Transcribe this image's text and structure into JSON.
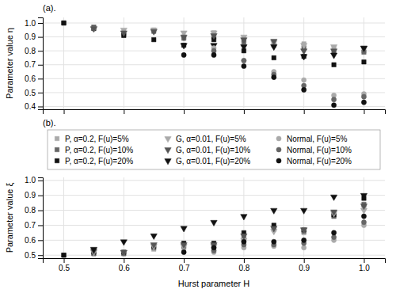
{
  "chart_data": [
    {
      "type": "scatter",
      "annotation": "(a).",
      "ylabel": "Parameter value η",
      "x": [
        0.5,
        0.55,
        0.6,
        0.65,
        0.7,
        0.75,
        0.8,
        0.85,
        0.9,
        0.95,
        1.0
      ],
      "xlim": [
        0.465,
        1.035
      ],
      "xticks": [
        0.5,
        0.6,
        0.7,
        0.8,
        0.9,
        1
      ],
      "ylim": [
        0.38,
        1.04
      ],
      "yticks": [
        0.4,
        0.5,
        0.6,
        0.7,
        0.8,
        0.9,
        {
          "value": 1,
          "label": "1.0"
        }
      ],
      "grid": true,
      "tick_labels": "y",
      "series": [
        {
          "color": "#aaaaaa",
          "marker": "square",
          "values": [
            1.0,
            0.97,
            0.93,
            0.95,
            0.9,
            0.93,
            0.88,
            0.86,
            0.85,
            0.82,
            0.8
          ]
        },
        {
          "color": "#666666",
          "marker": "square",
          "values": [
            1.0,
            0.97,
            0.92,
            0.94,
            0.89,
            0.9,
            0.86,
            0.84,
            0.82,
            0.79,
            0.79
          ]
        },
        {
          "color": "#111111",
          "marker": "square",
          "values": [
            1.0,
            0.96,
            0.91,
            0.88,
            0.84,
            0.88,
            0.8,
            0.75,
            0.76,
            0.7,
            0.72
          ]
        },
        {
          "color": "#aaaaaa",
          "marker": "triangle-down",
          "values": [
            null,
            0.96,
            0.95,
            0.95,
            0.93,
            0.93,
            0.9,
            0.86,
            0.84,
            0.83,
            0.82
          ]
        },
        {
          "color": "#555555",
          "marker": "triangle-down",
          "values": [
            null,
            0.96,
            0.93,
            0.94,
            0.9,
            0.91,
            0.88,
            0.87,
            0.8,
            0.8,
            0.82
          ]
        },
        {
          "color": "#111111",
          "marker": "triangle-down",
          "values": [
            null,
            null,
            null,
            null,
            0.84,
            0.84,
            0.83,
            0.83,
            0.76,
            0.77,
            0.82
          ]
        },
        {
          "color": "#aaaaaa",
          "marker": "circle",
          "values": [
            null,
            null,
            null,
            null,
            null,
            0.82,
            0.73,
            0.65,
            0.59,
            0.48,
            0.49
          ]
        },
        {
          "color": "#666666",
          "marker": "circle",
          "values": [
            null,
            null,
            null,
            null,
            null,
            0.8,
            0.73,
            0.63,
            0.55,
            0.45,
            0.47
          ]
        },
        {
          "color": "#111111",
          "marker": "circle",
          "values": [
            null,
            null,
            null,
            null,
            0.77,
            0.77,
            0.69,
            0.61,
            0.52,
            0.41,
            0.43
          ]
        }
      ]
    },
    {
      "type": "scatter",
      "annotation": "(b).",
      "xlabel": "Hurst parameter H",
      "ylabel": "Parameter value ξ",
      "x": [
        0.5,
        0.55,
        0.6,
        0.65,
        0.7,
        0.75,
        0.8,
        0.85,
        0.9,
        0.95,
        1.0
      ],
      "xlim": [
        0.465,
        1.035
      ],
      "xticks": [
        0.5,
        0.6,
        0.7,
        0.8,
        0.9,
        {
          "value": 1,
          "label": "1.0"
        }
      ],
      "ylim": [
        0.48,
        1.02
      ],
      "yticks": [
        0.5,
        0.6,
        0.7,
        0.8,
        0.9,
        {
          "value": 1,
          "label": "1.0"
        }
      ],
      "grid": true,
      "legend": "top",
      "series": [
        {
          "name": "P, α=0.2, F(u)=5%",
          "color": "#aaaaaa",
          "marker": "square",
          "values": [
            0.5,
            0.51,
            0.51,
            0.54,
            0.55,
            0.54,
            0.6,
            0.67,
            0.65,
            0.76,
            0.82
          ]
        },
        {
          "name": "P, α=0.2, F(u)=10%",
          "color": "#666666",
          "marker": "square",
          "values": [
            0.5,
            0.51,
            0.51,
            0.55,
            0.56,
            0.56,
            0.62,
            0.68,
            0.66,
            0.76,
            0.84
          ]
        },
        {
          "name": "P, α=0.2, F(u)=20%",
          "color": "#111111",
          "marker": "square",
          "values": [
            0.5,
            0.52,
            0.52,
            0.56,
            0.58,
            0.58,
            0.65,
            0.7,
            0.67,
            0.77,
            0.88
          ]
        },
        {
          "name": "G, α=0.01, F(u)=5%",
          "color": "#aaaaaa",
          "marker": "triangle-down",
          "values": [
            null,
            0.52,
            0.52,
            0.56,
            0.56,
            0.56,
            0.6,
            0.66,
            0.67,
            0.78,
            0.8
          ]
        },
        {
          "name": "G, α=0.01, F(u)=10%",
          "color": "#555555",
          "marker": "triangle-down",
          "values": [
            null,
            0.53,
            0.52,
            0.57,
            0.57,
            0.57,
            0.63,
            0.68,
            0.67,
            0.79,
            0.83
          ]
        },
        {
          "name": "G, α=0.01, F(u)=20%",
          "color": "#111111",
          "marker": "triangle-down",
          "values": [
            null,
            0.54,
            0.59,
            0.63,
            0.68,
            0.72,
            0.76,
            0.8,
            0.8,
            0.89,
            0.9
          ]
        },
        {
          "name": "Normal, F(u)=5%",
          "color": "#aaaaaa",
          "marker": "circle",
          "values": [
            null,
            null,
            null,
            null,
            null,
            0.52,
            0.55,
            0.56,
            0.55,
            0.6,
            0.7
          ]
        },
        {
          "name": "Normal, F(u)=10%",
          "color": "#666666",
          "marker": "circle",
          "values": [
            null,
            null,
            null,
            null,
            null,
            0.53,
            0.57,
            0.57,
            0.58,
            0.62,
            0.72
          ]
        },
        {
          "name": "Normal, F(u)=20%",
          "color": "#111111",
          "marker": "circle",
          "values": [
            null,
            null,
            null,
            null,
            0.52,
            0.55,
            0.59,
            0.59,
            0.6,
            0.65,
            0.76
          ]
        }
      ]
    }
  ]
}
